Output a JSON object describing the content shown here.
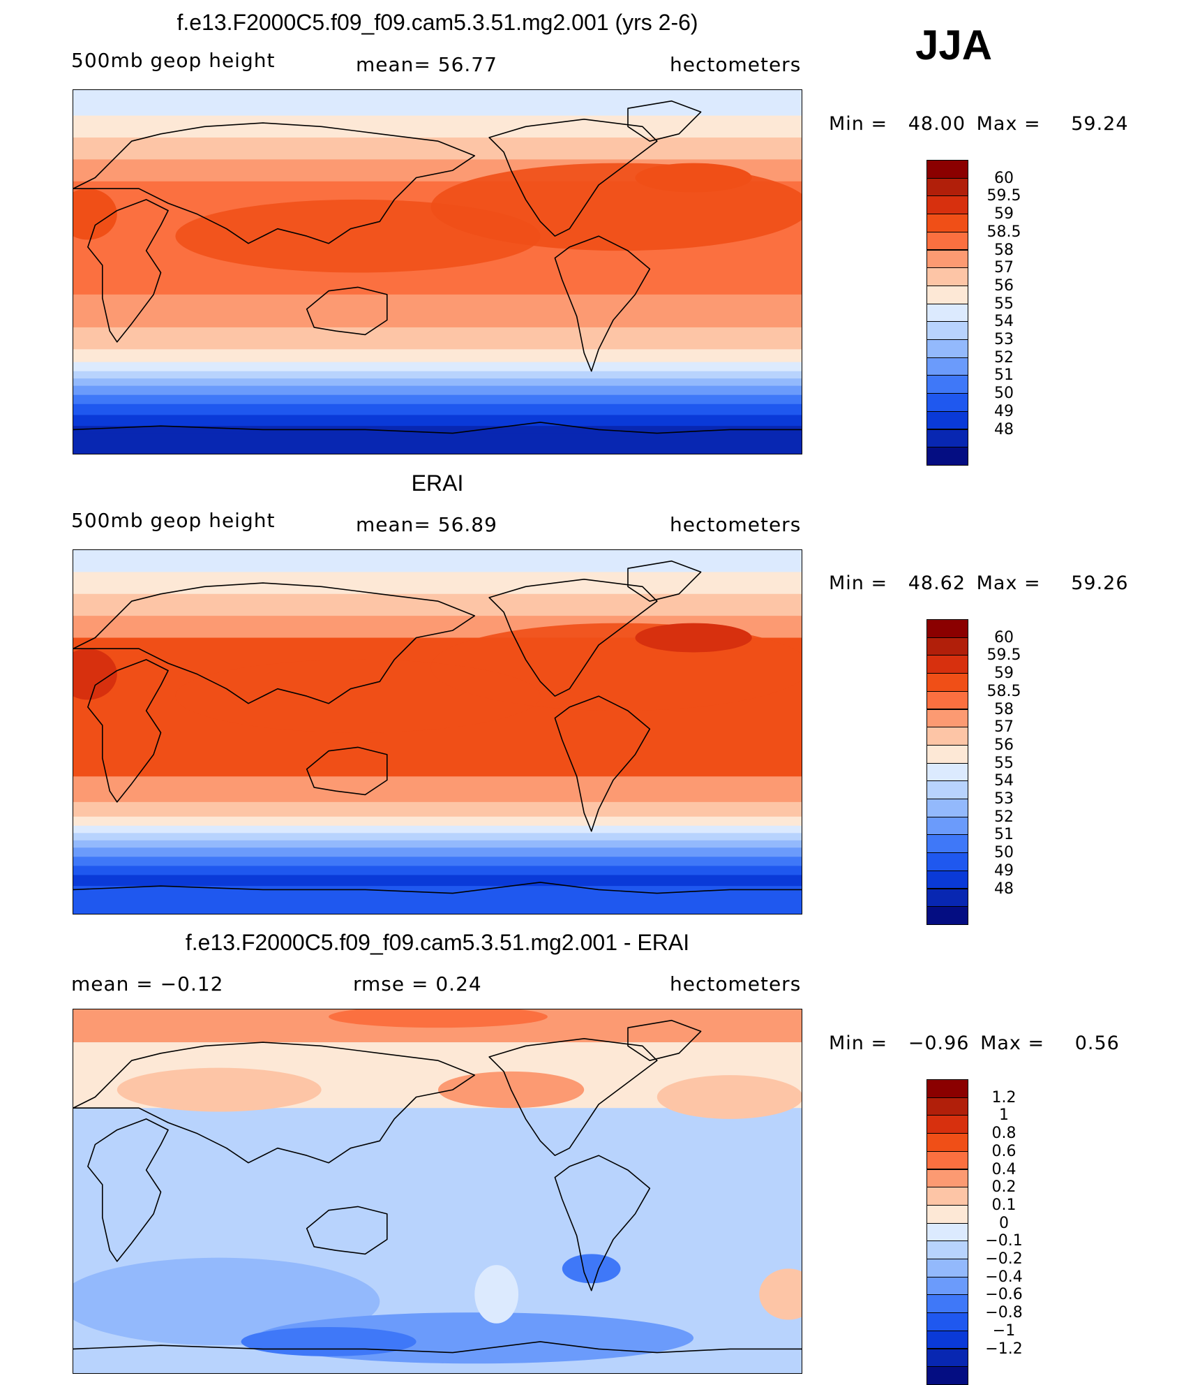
{
  "season": "JJA",
  "panels": [
    {
      "id": "model",
      "title": "f.e13.F2000C5.f09_f09.cam5.3.51.mg2.001 (yrs 2-6)",
      "left_label": "500mb geop height",
      "center_label": "mean=  56.77",
      "right_label": "hectometers",
      "min_label": "Min =",
      "min_value": "48.00",
      "max_label": "Max =",
      "max_value": "59.24",
      "map_type": "field",
      "colorbar": {
        "colors": [
          "#8b0000",
          "#b11f0a",
          "#d7300e",
          "#f04f17",
          "#fb7040",
          "#fc9a72",
          "#fdc5a6",
          "#fde8d6",
          "#dceafe",
          "#b8d3fd",
          "#93b9fc",
          "#6b9bfb",
          "#3f78f8",
          "#1f58ef",
          "#0a3ad8",
          "#0827b2",
          "#040d82"
        ],
        "labels": [
          "60",
          "59.5",
          "59",
          "58.5",
          "58",
          "57",
          "56",
          "55",
          "54",
          "53",
          "52",
          "51",
          "50",
          "49",
          "48"
        ]
      }
    },
    {
      "id": "obs",
      "title": "ERAI",
      "left_label": "500mb geop height",
      "center_label": "mean=  56.89",
      "right_label": "hectometers",
      "min_label": "Min =",
      "min_value": "48.62",
      "max_label": "Max =",
      "max_value": "59.26",
      "map_type": "field",
      "colorbar": {
        "colors": [
          "#8b0000",
          "#b11f0a",
          "#d7300e",
          "#f04f17",
          "#fb7040",
          "#fc9a72",
          "#fdc5a6",
          "#fde8d6",
          "#dceafe",
          "#b8d3fd",
          "#93b9fc",
          "#6b9bfb",
          "#3f78f8",
          "#1f58ef",
          "#0a3ad8",
          "#0827b2",
          "#040d82"
        ],
        "labels": [
          "60",
          "59.5",
          "59",
          "58.5",
          "58",
          "57",
          "56",
          "55",
          "54",
          "53",
          "52",
          "51",
          "50",
          "49",
          "48"
        ]
      }
    },
    {
      "id": "diff",
      "title": "f.e13.F2000C5.f09_f09.cam5.3.51.mg2.001 - ERAI",
      "left_label": "mean =   −0.12",
      "center_label": "rmse =    0.24",
      "right_label": "hectometers",
      "min_label": "Min =",
      "min_value": "−0.96",
      "max_label": "Max =",
      "max_value": "0.56",
      "map_type": "diff",
      "colorbar": {
        "colors": [
          "#8b0000",
          "#b11f0a",
          "#d7300e",
          "#f04f17",
          "#fb7040",
          "#fc9a72",
          "#fdc5a6",
          "#fde8d6",
          "#dceafe",
          "#b8d3fd",
          "#93b9fc",
          "#6b9bfb",
          "#3f78f8",
          "#1f58ef",
          "#0a3ad8",
          "#0827b2",
          "#040d82"
        ],
        "labels": [
          "1.2",
          "1",
          "0.8",
          "0.6",
          "0.4",
          "0.2",
          "0.1",
          "0",
          "−0.1",
          "−0.2",
          "−0.4",
          "−0.6",
          "−0.8",
          "−1",
          "−1.2"
        ]
      }
    }
  ]
}
